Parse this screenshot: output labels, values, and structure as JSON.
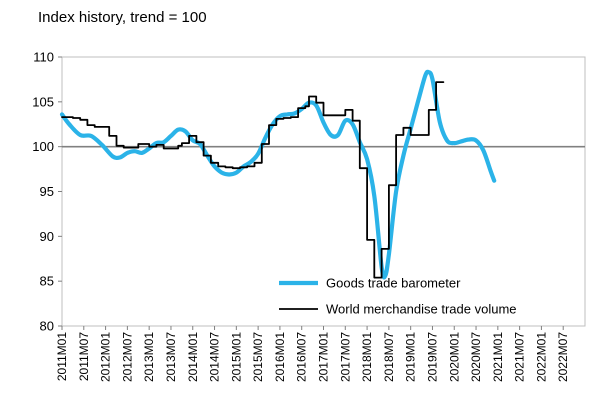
{
  "chart_data": {
    "type": "line",
    "subtitle": "Index history, trend = 100",
    "ylim": [
      80,
      110
    ],
    "yticks": [
      80,
      85,
      90,
      95,
      100,
      105,
      110
    ],
    "reference_line": 100,
    "xtick_labels": [
      "2011M01",
      "2011M07",
      "2012M01",
      "2012M07",
      "2013M01",
      "2013M07",
      "2014M01",
      "2014M07",
      "2015M01",
      "2015M07",
      "2016M01",
      "2016M07",
      "2017M01",
      "2017M07",
      "2018M01",
      "2018M07",
      "2019M01",
      "2019M07",
      "2020M01",
      "2020M07",
      "2021M01",
      "2021M07",
      "2022M01",
      "2022M07"
    ],
    "legend": {
      "position": "bottom-right"
    },
    "series": [
      {
        "name": "Goods trade barometer",
        "color": "#2bb3e8",
        "style": "smooth",
        "points": [
          [
            0,
            103.6
          ],
          [
            2,
            102.5
          ],
          [
            5,
            101.3
          ],
          [
            8,
            101.2
          ],
          [
            11,
            100.2
          ],
          [
            14,
            98.9
          ],
          [
            16,
            98.8
          ],
          [
            18,
            99.3
          ],
          [
            20,
            99.5
          ],
          [
            22,
            99.3
          ],
          [
            24,
            99.8
          ],
          [
            26,
            100.4
          ],
          [
            28,
            100.5
          ],
          [
            30,
            101.2
          ],
          [
            32,
            101.9
          ],
          [
            34,
            101.7
          ],
          [
            36,
            100.7
          ],
          [
            38,
            100.3
          ],
          [
            40,
            99.0
          ],
          [
            42,
            97.8
          ],
          [
            44,
            97.1
          ],
          [
            46,
            96.9
          ],
          [
            48,
            97.1
          ],
          [
            50,
            97.8
          ],
          [
            52,
            98.3
          ],
          [
            54,
            99.2
          ],
          [
            56,
            101.0
          ],
          [
            58,
            102.5
          ],
          [
            60,
            103.4
          ],
          [
            62,
            103.6
          ],
          [
            64,
            103.7
          ],
          [
            66,
            104.2
          ],
          [
            68,
            104.9
          ],
          [
            70,
            104.6
          ],
          [
            72,
            102.7
          ],
          [
            74,
            101.3
          ],
          [
            76,
            101.3
          ],
          [
            78,
            102.9
          ],
          [
            80,
            102.5
          ],
          [
            82,
            100.5
          ],
          [
            84,
            98.6
          ],
          [
            86,
            94.5
          ],
          [
            88,
            86.6
          ],
          [
            89,
            85.6
          ],
          [
            90,
            88.0
          ],
          [
            92,
            95.0
          ],
          [
            94,
            99.0
          ],
          [
            96,
            102.0
          ],
          [
            98,
            105.0
          ],
          [
            100,
            107.9
          ],
          [
            101,
            108.3
          ],
          [
            102,
            107.5
          ],
          [
            104,
            102.8
          ],
          [
            106,
            100.7
          ],
          [
            108,
            100.4
          ],
          [
            110,
            100.6
          ],
          [
            112,
            100.8
          ],
          [
            114,
            100.7
          ],
          [
            116,
            99.6
          ],
          [
            118,
            97.3
          ],
          [
            119,
            96.2
          ]
        ]
      },
      {
        "name": "World merchandise trade volume",
        "color": "#000000",
        "style": "step",
        "points": [
          [
            0,
            103.3
          ],
          [
            3,
            103.2
          ],
          [
            5,
            103.0
          ],
          [
            7,
            102.4
          ],
          [
            9,
            102.2
          ],
          [
            13,
            101.2
          ],
          [
            15,
            100.1
          ],
          [
            17,
            99.9
          ],
          [
            19,
            99.9
          ],
          [
            21,
            100.3
          ],
          [
            24,
            100.0
          ],
          [
            26,
            100.2
          ],
          [
            28,
            99.8
          ],
          [
            32,
            100.1
          ],
          [
            33,
            100.4
          ],
          [
            35,
            101.2
          ],
          [
            37,
            100.5
          ],
          [
            39,
            99.0
          ],
          [
            41,
            98.2
          ],
          [
            43,
            97.8
          ],
          [
            45,
            97.7
          ],
          [
            47,
            97.6
          ],
          [
            49,
            97.7
          ],
          [
            51,
            97.8
          ],
          [
            53,
            98.2
          ],
          [
            55,
            100.3
          ],
          [
            57,
            102.4
          ],
          [
            59,
            103.1
          ],
          [
            61,
            103.2
          ],
          [
            63,
            103.3
          ],
          [
            65,
            104.3
          ],
          [
            67,
            104.5
          ],
          [
            68,
            105.6
          ],
          [
            70,
            104.9
          ],
          [
            72,
            103.5
          ],
          [
            76,
            103.5
          ],
          [
            78,
            104.1
          ],
          [
            80,
            102.9
          ],
          [
            82,
            97.6
          ],
          [
            84,
            89.6
          ],
          [
            86,
            85.4
          ],
          [
            88,
            88.6
          ],
          [
            90,
            95.7
          ],
          [
            92,
            101.3
          ],
          [
            94,
            102.1
          ],
          [
            96,
            101.3
          ],
          [
            99,
            101.3
          ],
          [
            101,
            104.1
          ],
          [
            103,
            107.2
          ],
          [
            105,
            107.2
          ]
        ]
      }
    ]
  }
}
